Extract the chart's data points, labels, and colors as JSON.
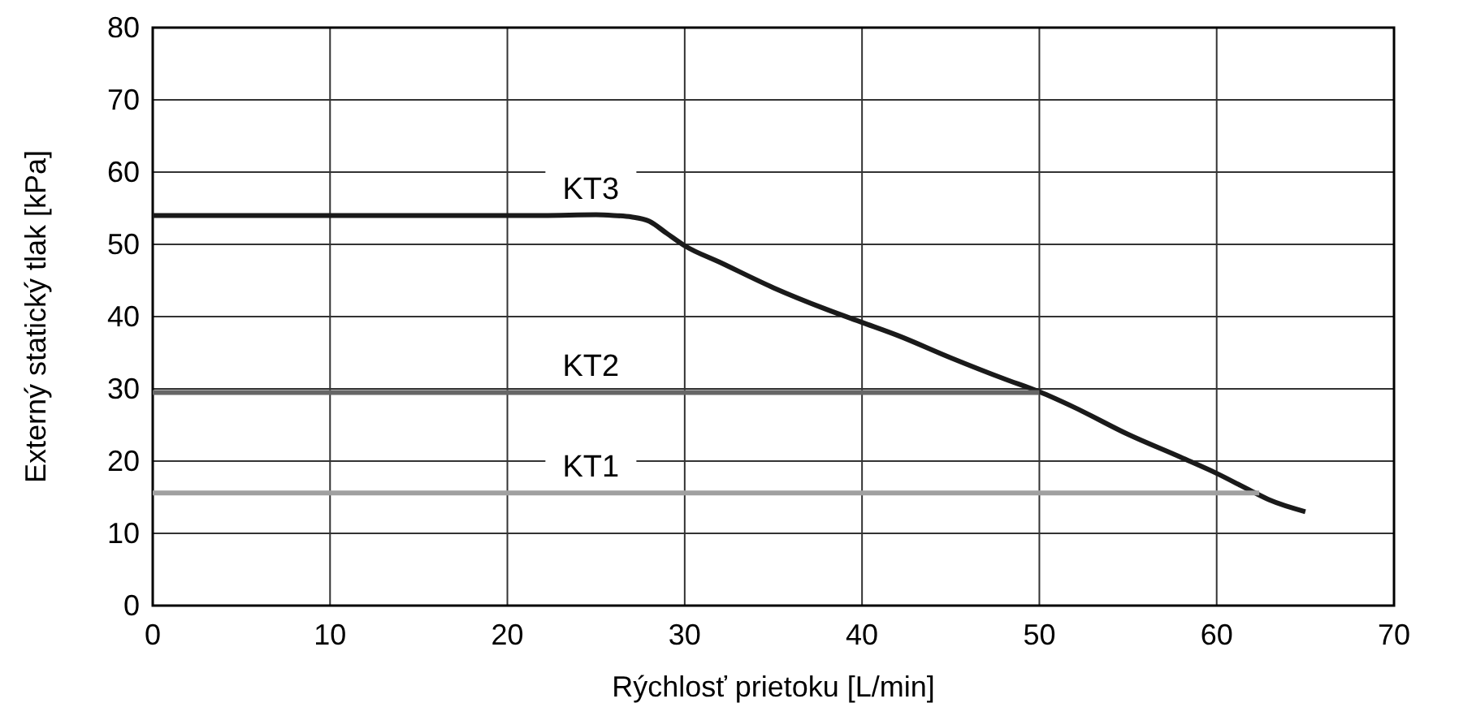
{
  "chart_data": {
    "type": "line",
    "xlabel": "Rýchlosť prietoku [L/min]",
    "ylabel": "Externý statický tlak [kPa]",
    "xlim": [
      0,
      70
    ],
    "xticks": [
      0,
      10,
      20,
      30,
      40,
      50,
      60,
      70
    ],
    "ylim": [
      0,
      80
    ],
    "yticks": [
      0,
      10,
      20,
      30,
      40,
      50,
      60,
      70,
      80
    ],
    "grid": true,
    "line_style": "solid",
    "series": [
      {
        "name": "KT3",
        "color": "#1a1a1a",
        "x": [
          0,
          22,
          25,
          26,
          27,
          28,
          29,
          30,
          32,
          35,
          38,
          40,
          42,
          45,
          48,
          50,
          52,
          55,
          58,
          60,
          62,
          63,
          65
        ],
        "values": [
          54,
          54,
          54.1,
          54,
          53.8,
          53.2,
          51.5,
          49.8,
          47.5,
          44,
          41,
          39.2,
          37.4,
          34.3,
          31.4,
          29.6,
          27.4,
          23.7,
          20.5,
          18.3,
          15.8,
          14.6,
          13
        ]
      },
      {
        "name": "KT2",
        "color": "#666666",
        "x": [
          0,
          50
        ],
        "values": [
          29.5,
          29.5
        ]
      },
      {
        "name": "KT1",
        "color": "#a0a0a0",
        "x": [
          0,
          62.4
        ],
        "values": [
          15.6,
          15.6
        ]
      }
    ]
  }
}
